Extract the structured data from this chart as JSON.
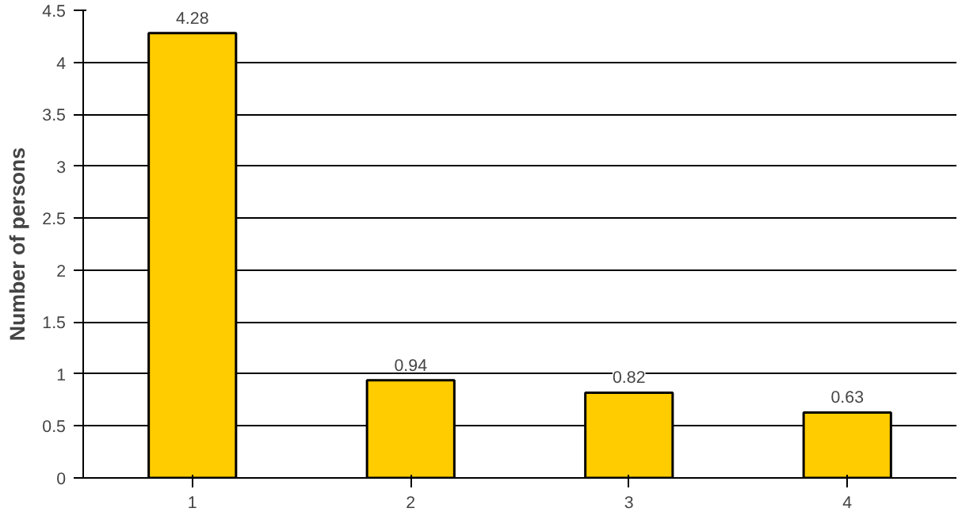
{
  "chart_data": {
    "type": "bar",
    "ylabel": "Number of persons",
    "categories": [
      "1",
      "2",
      "3",
      "4"
    ],
    "values": [
      4.28,
      0.94,
      0.82,
      0.63
    ],
    "color": "#ffcc00",
    "data_labels": true,
    "ylim": [
      0,
      4.5
    ],
    "yticks": [
      0,
      0.5,
      1,
      1.5,
      2,
      2.5,
      3,
      3.5,
      4,
      4.5
    ],
    "grid": "y"
  }
}
